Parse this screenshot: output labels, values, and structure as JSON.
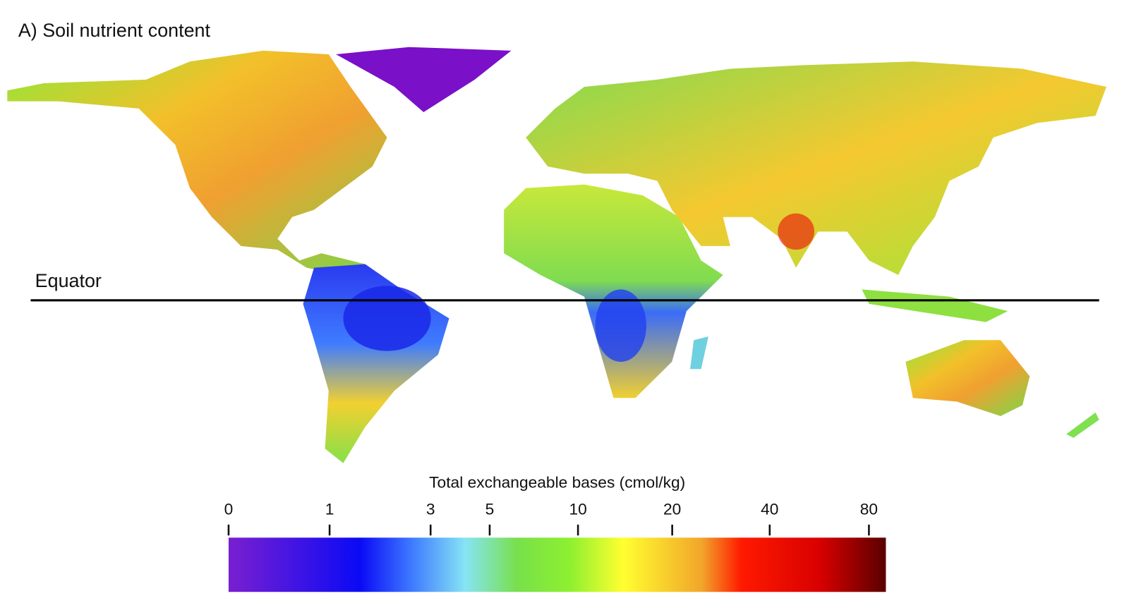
{
  "title": "A) Soil nutrient content",
  "equator_label": "Equator",
  "colorbar": {
    "title": "Total exchangeable bases (cmol/kg)",
    "ticks": [
      0,
      1,
      3,
      5,
      10,
      20,
      40,
      80
    ],
    "lim": [
      0,
      90
    ],
    "scale": "log1p"
  }
}
